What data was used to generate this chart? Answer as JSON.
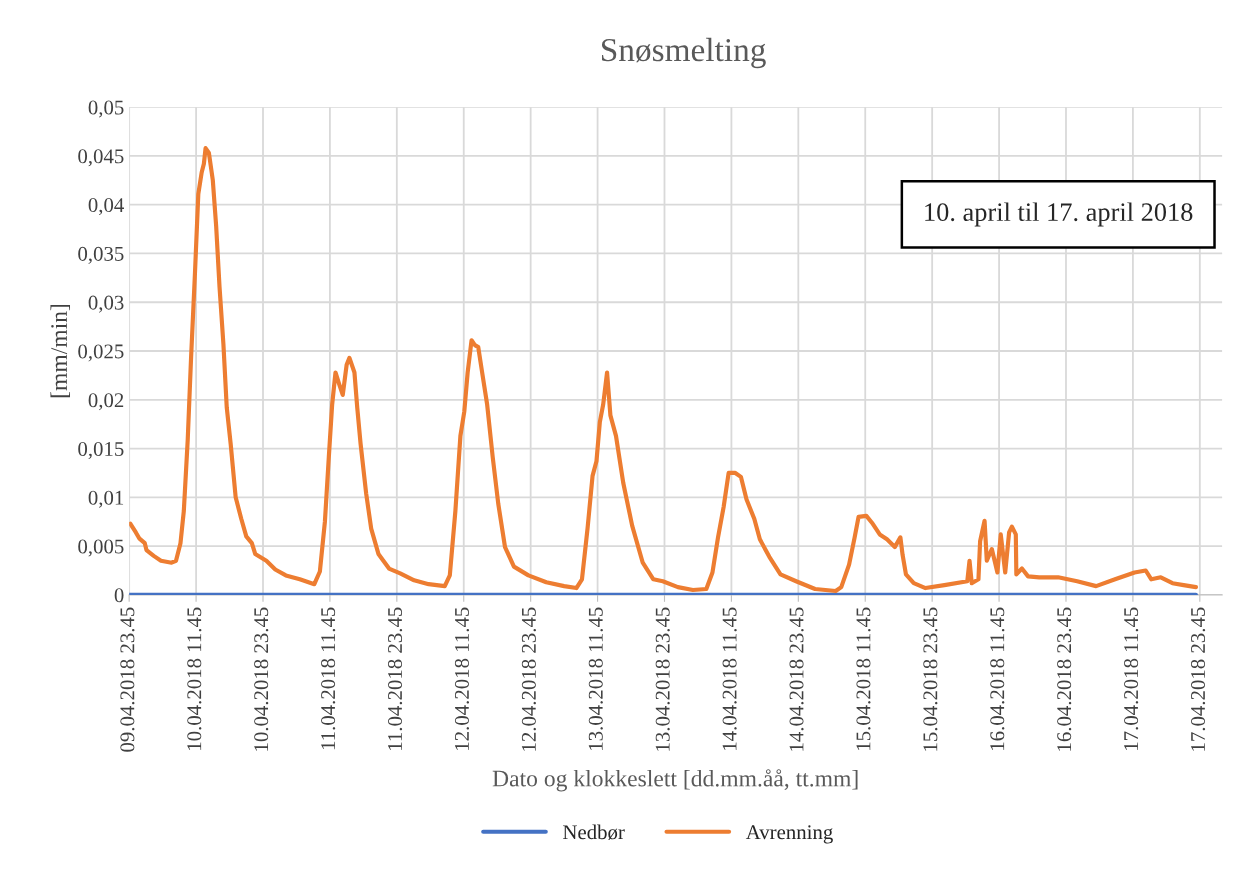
{
  "chart_data": {
    "type": "line",
    "title": "Snøsmelting",
    "xlabel": "Dato og klokkeslett [dd.mm.åå, tt.mm]",
    "ylabel": "[mm/min]",
    "annotations": [
      "10. april til 17. april 2018"
    ],
    "xlim": [
      "2018-04-09T23:45",
      "2018-04-18T03:45"
    ],
    "ylim": [
      0,
      0.05
    ],
    "xticks": [
      {
        "value": "2018-04-09T23:45",
        "label": "09.04.2018 23.45"
      },
      {
        "value": "2018-04-10T11:45",
        "label": "10.04.2018 11.45"
      },
      {
        "value": "2018-04-10T23:45",
        "label": "10.04.2018 23.45"
      },
      {
        "value": "2018-04-11T11:45",
        "label": "11.04.2018 11.45"
      },
      {
        "value": "2018-04-11T23:45",
        "label": "11.04.2018 23.45"
      },
      {
        "value": "2018-04-12T11:45",
        "label": "12.04.2018 11.45"
      },
      {
        "value": "2018-04-12T23:45",
        "label": "12.04.2018 23.45"
      },
      {
        "value": "2018-04-13T11:45",
        "label": "13.04.2018 11.45"
      },
      {
        "value": "2018-04-13T23:45",
        "label": "13.04.2018 23.45"
      },
      {
        "value": "2018-04-14T11:45",
        "label": "14.04.2018 11.45"
      },
      {
        "value": "2018-04-14T23:45",
        "label": "14.04.2018 23.45"
      },
      {
        "value": "2018-04-15T11:45",
        "label": "15.04.2018 11.45"
      },
      {
        "value": "2018-04-15T23:45",
        "label": "15.04.2018 23.45"
      },
      {
        "value": "2018-04-16T11:45",
        "label": "16.04.2018 11.45"
      },
      {
        "value": "2018-04-16T23:45",
        "label": "16.04.2018 23.45"
      },
      {
        "value": "2018-04-17T11:45",
        "label": "17.04.2018 11.45"
      },
      {
        "value": "2018-04-17T23:45",
        "label": "17.04.2018 23.45"
      }
    ],
    "yticks": [
      {
        "value": 0,
        "label": "0"
      },
      {
        "value": 0.005,
        "label": "0,005"
      },
      {
        "value": 0.01,
        "label": "0,01"
      },
      {
        "value": 0.015,
        "label": "0,015"
      },
      {
        "value": 0.02,
        "label": "0,02"
      },
      {
        "value": 0.025,
        "label": "0,025"
      },
      {
        "value": 0.03,
        "label": "0,03"
      },
      {
        "value": 0.035,
        "label": "0,035"
      },
      {
        "value": 0.04,
        "label": "0,04"
      },
      {
        "value": 0.045,
        "label": "0,045"
      },
      {
        "value": 0.05,
        "label": "0,05"
      }
    ],
    "grid": true,
    "legend": "bottom",
    "marker": "none",
    "line_style": "solid",
    "series": [
      {
        "name": "Nedbør",
        "color": "#4472c4",
        "x": [
          "2018-04-09T23:45",
          "2018-04-17T23:03"
        ],
        "values": [
          0,
          0
        ]
      },
      {
        "name": "Avrenning",
        "color": "#ed7d31",
        "x": [
          "2018-04-09T23:57",
          "2018-04-10T00:57",
          "2018-04-10T01:33",
          "2018-04-10T02:33",
          "2018-04-10T02:51",
          "2018-04-10T04:09",
          "2018-04-10T05:27",
          "2018-04-10T07:21",
          "2018-04-10T08:09",
          "2018-04-10T08:57",
          "2018-04-10T09:33",
          "2018-04-10T10:15",
          "2018-04-10T10:51",
          "2018-04-10T11:33",
          "2018-04-10T12:09",
          "2018-04-10T12:45",
          "2018-04-10T13:09",
          "2018-04-10T13:27",
          "2018-04-10T14:03",
          "2018-04-10T14:45",
          "2018-04-10T15:21",
          "2018-04-10T15:57",
          "2018-04-10T16:39",
          "2018-04-10T17:15",
          "2018-04-10T17:57",
          "2018-04-10T18:51",
          "2018-04-10T19:51",
          "2018-04-10T20:45",
          "2018-04-10T21:45",
          "2018-04-10T22:21",
          "2018-04-11T00:21",
          "2018-04-11T01:57",
          "2018-04-11T03:51",
          "2018-04-11T06:21",
          "2018-04-11T08:57",
          "2018-04-11T09:57",
          "2018-04-11T10:51",
          "2018-04-11T11:33",
          "2018-04-11T12:09",
          "2018-04-11T12:45",
          "2018-04-11T13:21",
          "2018-04-11T14:03",
          "2018-04-11T14:45",
          "2018-04-11T15:15",
          "2018-04-11T16:09",
          "2018-04-11T16:39",
          "2018-04-11T17:15",
          "2018-04-11T18:15",
          "2018-04-11T19:09",
          "2018-04-11T20:27",
          "2018-04-11T22:21",
          "2018-04-12T00:21",
          "2018-04-12T02:51",
          "2018-04-12T05:27",
          "2018-04-12T08:21",
          "2018-04-12T09:15",
          "2018-04-12T10:15",
          "2018-04-12T11:09",
          "2018-04-12T11:51",
          "2018-04-12T12:27",
          "2018-04-12T13:09",
          "2018-04-12T13:45",
          "2018-04-12T14:21",
          "2018-04-12T15:03",
          "2018-04-12T15:57",
          "2018-04-12T16:57",
          "2018-04-12T17:57",
          "2018-04-12T19:09",
          "2018-04-12T20:45",
          "2018-04-12T23:21",
          "2018-04-13T02:33",
          "2018-04-13T05:45",
          "2018-04-13T07:57",
          "2018-04-13T08:57",
          "2018-04-13T09:57",
          "2018-04-13T10:51",
          "2018-04-13T11:33",
          "2018-04-13T12:09",
          "2018-04-13T12:45",
          "2018-04-13T13:27",
          "2018-04-13T14:03",
          "2018-04-13T15:03",
          "2018-04-13T16:21",
          "2018-04-13T17:57",
          "2018-04-13T19:51",
          "2018-04-13T21:45",
          "2018-04-13T23:27",
          "2018-04-14T02:09",
          "2018-04-14T04:51",
          "2018-04-14T07:15",
          "2018-04-14T08:21",
          "2018-04-14T09:21",
          "2018-04-14T10:21",
          "2018-04-14T11:15",
          "2018-04-14T12:27",
          "2018-04-14T13:27",
          "2018-04-14T14:27",
          "2018-04-14T15:51",
          "2018-04-14T16:51",
          "2018-04-14T18:33",
          "2018-04-14T20:33",
          "2018-04-14T23:21",
          "2018-04-15T02:45",
          "2018-04-15T06:27",
          "2018-04-15T07:27",
          "2018-04-15T08:51",
          "2018-04-15T09:51",
          "2018-04-15T10:33",
          "2018-04-15T11:57",
          "2018-04-15T12:57",
          "2018-04-15T14:21",
          "2018-04-15T15:39",
          "2018-04-15T17:03",
          "2018-04-15T18:03",
          "2018-04-15T18:27",
          "2018-04-15T19:03",
          "2018-04-15T20:27",
          "2018-04-15T22:33",
          "2018-04-16T01:57",
          "2018-04-16T06:03",
          "2018-04-16T06:27",
          "2018-04-16T06:51",
          "2018-04-16T08:03",
          "2018-04-16T08:21",
          "2018-04-16T09:09",
          "2018-04-16T09:33",
          "2018-04-16T10:27",
          "2018-04-16T11:27",
          "2018-04-16T12:03",
          "2018-04-16T12:51",
          "2018-04-16T13:33",
          "2018-04-16T14:03",
          "2018-04-16T14:45",
          "2018-04-16T14:51",
          "2018-04-16T15:51",
          "2018-04-16T16:57",
          "2018-04-16T18:57",
          "2018-04-16T22:21",
          "2018-04-17T01:45",
          "2018-04-17T05:09",
          "2018-04-17T08:33",
          "2018-04-17T12:03",
          "2018-04-17T14:03",
          "2018-04-17T15:03",
          "2018-04-17T16:45",
          "2018-04-17T18:51",
          "2018-04-17T20:51",
          "2018-04-17T23:03"
        ],
        "values": [
          0.0073,
          0.0064,
          0.0058,
          0.0053,
          0.0046,
          0.004,
          0.0035,
          0.0033,
          0.0035,
          0.0053,
          0.0086,
          0.0159,
          0.0243,
          0.033,
          0.0411,
          0.0433,
          0.0442,
          0.0458,
          0.0453,
          0.0425,
          0.0378,
          0.0316,
          0.0257,
          0.0192,
          0.0155,
          0.01,
          0.0078,
          0.006,
          0.0053,
          0.0042,
          0.0035,
          0.0026,
          0.002,
          0.0016,
          0.0011,
          0.0024,
          0.0075,
          0.0141,
          0.0195,
          0.0228,
          0.0217,
          0.0205,
          0.0236,
          0.0243,
          0.0228,
          0.0192,
          0.0155,
          0.0104,
          0.0068,
          0.0042,
          0.0027,
          0.0022,
          0.0015,
          0.0011,
          0.0009,
          0.002,
          0.0086,
          0.0163,
          0.0188,
          0.0228,
          0.0261,
          0.0256,
          0.0254,
          0.0228,
          0.0195,
          0.0141,
          0.0093,
          0.0049,
          0.0029,
          0.002,
          0.0013,
          0.0009,
          0.0007,
          0.0016,
          0.0068,
          0.0122,
          0.0137,
          0.0177,
          0.0195,
          0.0228,
          0.0184,
          0.0163,
          0.0115,
          0.0071,
          0.0033,
          0.0016,
          0.0014,
          0.0008,
          0.0005,
          0.0006,
          0.0023,
          0.0059,
          0.009,
          0.0125,
          0.0125,
          0.0121,
          0.0098,
          0.0078,
          0.0057,
          0.0039,
          0.0021,
          0.0014,
          0.0006,
          0.0004,
          0.0008,
          0.0031,
          0.0059,
          0.008,
          0.0081,
          0.0074,
          0.0062,
          0.0057,
          0.0049,
          0.0059,
          0.0041,
          0.0021,
          0.0012,
          0.0007,
          0.001,
          0.0014,
          0.0035,
          0.0012,
          0.0016,
          0.0055,
          0.0076,
          0.0035,
          0.0047,
          0.0023,
          0.0062,
          0.0023,
          0.0064,
          0.007,
          0.0062,
          0.0021,
          0.0027,
          0.0019,
          0.0018,
          0.0018,
          0.0014,
          0.0009,
          0.0016,
          0.0023,
          0.0025,
          0.0016,
          0.0018,
          0.0012,
          0.001,
          0.0008
        ]
      }
    ]
  }
}
